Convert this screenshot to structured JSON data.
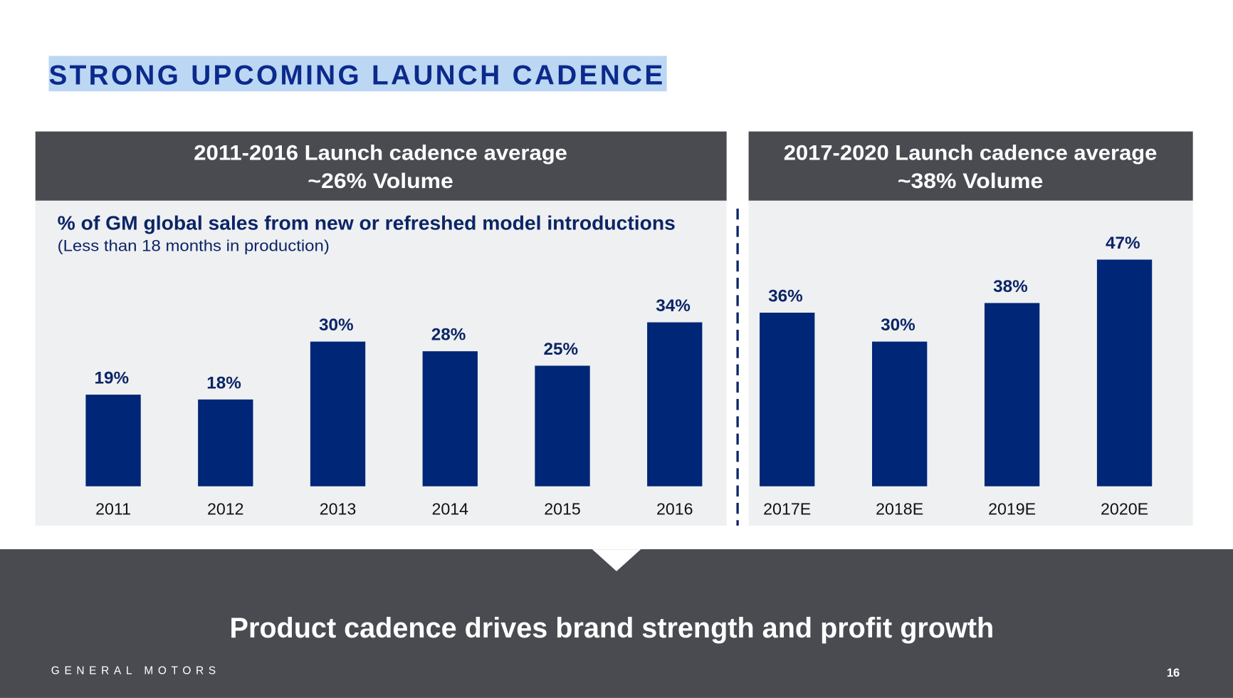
{
  "title": "STRONG UPCOMING LAUNCH CADENCE",
  "chart_data": [
    {
      "type": "bar",
      "title": "2011-2016 Launch cadence average",
      "subtitle": "~26% Volume",
      "caption": "% of GM global sales from new or refreshed model introductions",
      "note": "(Less than 18 months in production)",
      "categories": [
        "2011",
        "2012",
        "2013",
        "2014",
        "2015",
        "2016"
      ],
      "values": [
        19,
        18,
        30,
        28,
        25,
        34
      ],
      "value_labels": [
        "19%",
        "18%",
        "30%",
        "28%",
        "25%",
        "34%"
      ],
      "color": "#002677",
      "ylim": [
        0,
        50
      ]
    },
    {
      "type": "bar",
      "title": "2017-2020 Launch cadence average",
      "subtitle": "~38% Volume",
      "categories": [
        "2017E",
        "2018E",
        "2019E",
        "2020E"
      ],
      "values": [
        36,
        30,
        38,
        47
      ],
      "value_labels": [
        "36%",
        "30%",
        "38%",
        "47%"
      ],
      "color": "#002677",
      "ylim": [
        0,
        50
      ]
    }
  ],
  "footer": {
    "message": "Product cadence drives brand strength and profit growth",
    "brand": "GENERAL MOTORS",
    "page": "16"
  }
}
